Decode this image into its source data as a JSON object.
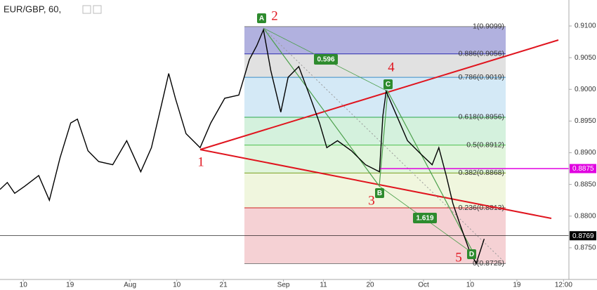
{
  "chart_data": {
    "type": "line",
    "title": "EUR/GBP, 60,",
    "x": [
      -3.5,
      -2.4,
      -1.3,
      0.2,
      2.3,
      3.9,
      5.5,
      7.1,
      8.1,
      9.7,
      11.3,
      13.4,
      15.5,
      17.6,
      19.2,
      20.7,
      21.8,
      22.8,
      24.4,
      26.5,
      28.1,
      30.2,
      32.3,
      33.9,
      35.0,
      36.0,
      37.1,
      38.6,
      39.7,
      41.3,
      42.9,
      44.4,
      45.5,
      47.1,
      49.2,
      51.3,
      53.4,
      53.9,
      54.4,
      56.0,
      57.6,
      59.7,
      61.3,
      62.3,
      63.4,
      64.4,
      65.5,
      66.8,
      67.9,
      69.1
    ],
    "series": [
      {
        "color": "#000000",
        "values": [
          0.8842,
          0.8853,
          0.8836,
          0.8847,
          0.8864,
          0.8825,
          0.8892,
          0.8947,
          0.8953,
          0.8903,
          0.8886,
          0.8881,
          0.8919,
          0.887,
          0.8908,
          0.8975,
          0.9025,
          0.8986,
          0.893,
          0.8908,
          0.8947,
          0.8986,
          0.8991,
          0.9047,
          0.9069,
          0.9094,
          0.903,
          0.8964,
          0.9019,
          0.9036,
          0.8991,
          0.8947,
          0.8908,
          0.8919,
          0.8903,
          0.8881,
          0.887,
          0.8958,
          0.8997,
          0.8958,
          0.8919,
          0.8897,
          0.8881,
          0.8908,
          0.8864,
          0.882,
          0.8786,
          0.8748,
          0.8725,
          0.8764
        ]
      }
    ],
    "xlim": [
      -3.5,
      81.8
    ],
    "xticks": [
      {
        "value": 0,
        "label": "10"
      },
      {
        "value": 7,
        "label": "19"
      },
      {
        "value": 16,
        "label": "Aug"
      },
      {
        "value": 23,
        "label": "10"
      },
      {
        "value": 30,
        "label": "21"
      },
      {
        "value": 39,
        "label": "Sep"
      },
      {
        "value": 45,
        "label": "11"
      },
      {
        "value": 52,
        "label": "20"
      },
      {
        "value": 60,
        "label": "Oct"
      },
      {
        "value": 67,
        "label": "10"
      },
      {
        "value": 74,
        "label": "19"
      },
      {
        "value": 81,
        "label": "12:00"
      }
    ],
    "ylim": [
      0.87,
      0.9141
    ],
    "yticks": [
      {
        "value": 0.875,
        "label": "0.8750"
      },
      {
        "value": 0.88,
        "label": "0.8800"
      },
      {
        "value": 0.885,
        "label": "0.8850"
      },
      {
        "value": 0.89,
        "label": "0.8900"
      },
      {
        "value": 0.895,
        "label": "0.8950"
      },
      {
        "value": 0.9,
        "label": "0.9000"
      },
      {
        "value": 0.905,
        "label": "0.9050"
      },
      {
        "value": 0.91,
        "label": "0.9100"
      }
    ],
    "price_tags": [
      {
        "value": 0.8875,
        "color": "#e000e0"
      },
      {
        "value": 0.8769,
        "color": "#000000"
      }
    ],
    "fib_levels": [
      {
        "label": "1(0.9099)",
        "value": 0.9099,
        "color": "#808080",
        "fill": "#a3a3d9"
      },
      {
        "label": "0.886(0.9056)",
        "value": 0.9056,
        "color": "#2a2ab0",
        "fill": "#dcdcdc"
      },
      {
        "label": "0.786(0.9019)",
        "value": 0.9019,
        "color": "#3a8fc8",
        "fill": "#cce5f4"
      },
      {
        "label": "0.618(0.8956)",
        "value": 0.8956,
        "color": "#2aa84a",
        "fill": "#cdeed7"
      },
      {
        "label": "0.5(0.8912)",
        "value": 0.8912,
        "color": "#4cc04c",
        "fill": "#dbf3d6"
      },
      {
        "label": "0.382(0.8868)",
        "value": 0.8868,
        "color": "#7aa020",
        "fill": "#edf5d8"
      },
      {
        "label": "0.236(0.8813)",
        "value": 0.8813,
        "color": "#d02020",
        "fill": "#f3c9cd"
      },
      {
        "label": "0(0.8725)",
        "value": 0.8725,
        "color": "#808080"
      }
    ],
    "waves": [
      "1",
      "2",
      "3",
      "4",
      "5"
    ],
    "points": [
      "A",
      "B",
      "C",
      "D"
    ],
    "ratios": [
      "0.596",
      "1.619"
    ]
  }
}
